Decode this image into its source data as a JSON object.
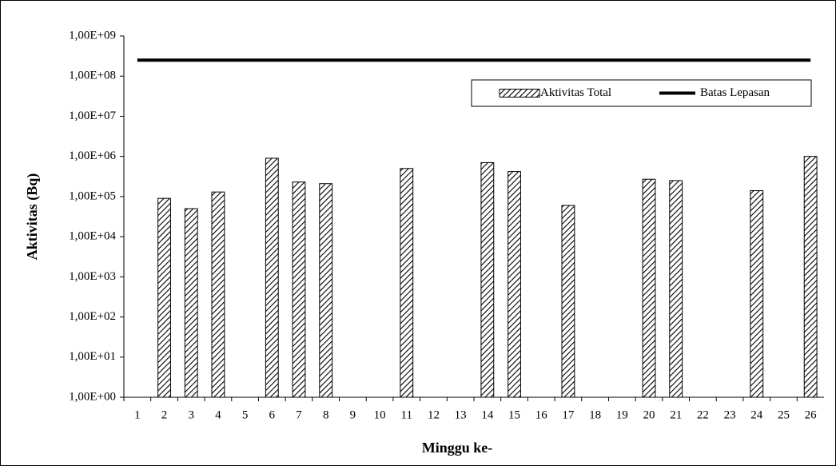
{
  "chart_data": {
    "type": "bar",
    "y_label": "Aktivitas (Bq)",
    "x_label": "Minggu ke-",
    "categories": [
      "1",
      "2",
      "3",
      "4",
      "5",
      "6",
      "7",
      "8",
      "9",
      "10",
      "11",
      "12",
      "13",
      "14",
      "15",
      "16",
      "17",
      "18",
      "19",
      "20",
      "21",
      "22",
      "23",
      "24",
      "25",
      "26"
    ],
    "series": [
      {
        "name": "Aktivitas Total",
        "type": "bar",
        "color": "#000000",
        "values": [
          null,
          90000,
          50000,
          130000,
          null,
          900000,
          230000,
          210000,
          null,
          null,
          500000,
          null,
          null,
          700000,
          420000,
          null,
          60000,
          null,
          null,
          270000,
          250000,
          null,
          null,
          140000,
          null,
          1000000
        ]
      },
      {
        "name": "Batas Lepasan",
        "type": "line",
        "color": "#000000",
        "values": [
          250000000,
          250000000,
          250000000,
          250000000,
          250000000,
          250000000,
          250000000,
          250000000,
          250000000,
          250000000,
          250000000,
          250000000,
          250000000,
          250000000,
          250000000,
          250000000,
          250000000,
          250000000,
          250000000,
          250000000,
          250000000,
          250000000,
          250000000,
          250000000,
          250000000,
          250000000
        ]
      }
    ],
    "ylim": [
      1,
      1000000000
    ],
    "log_scale": true,
    "yticks": [
      {
        "value": 1,
        "label": "1,00E+00"
      },
      {
        "value": 10,
        "label": "1,00E+01"
      },
      {
        "value": 100,
        "label": "1,00E+02"
      },
      {
        "value": 1000,
        "label": "1,00E+03"
      },
      {
        "value": 10000,
        "label": "1,00E+04"
      },
      {
        "value": 100000,
        "label": "1,00E+05"
      },
      {
        "value": 1000000,
        "label": "1,00E+06"
      },
      {
        "value": 10000000,
        "label": "1,00E+07"
      },
      {
        "value": 100000000,
        "label": "1,00E+08"
      },
      {
        "value": 1000000000,
        "label": "1,00E+09"
      }
    ],
    "grid": false,
    "legend": "upper right"
  }
}
